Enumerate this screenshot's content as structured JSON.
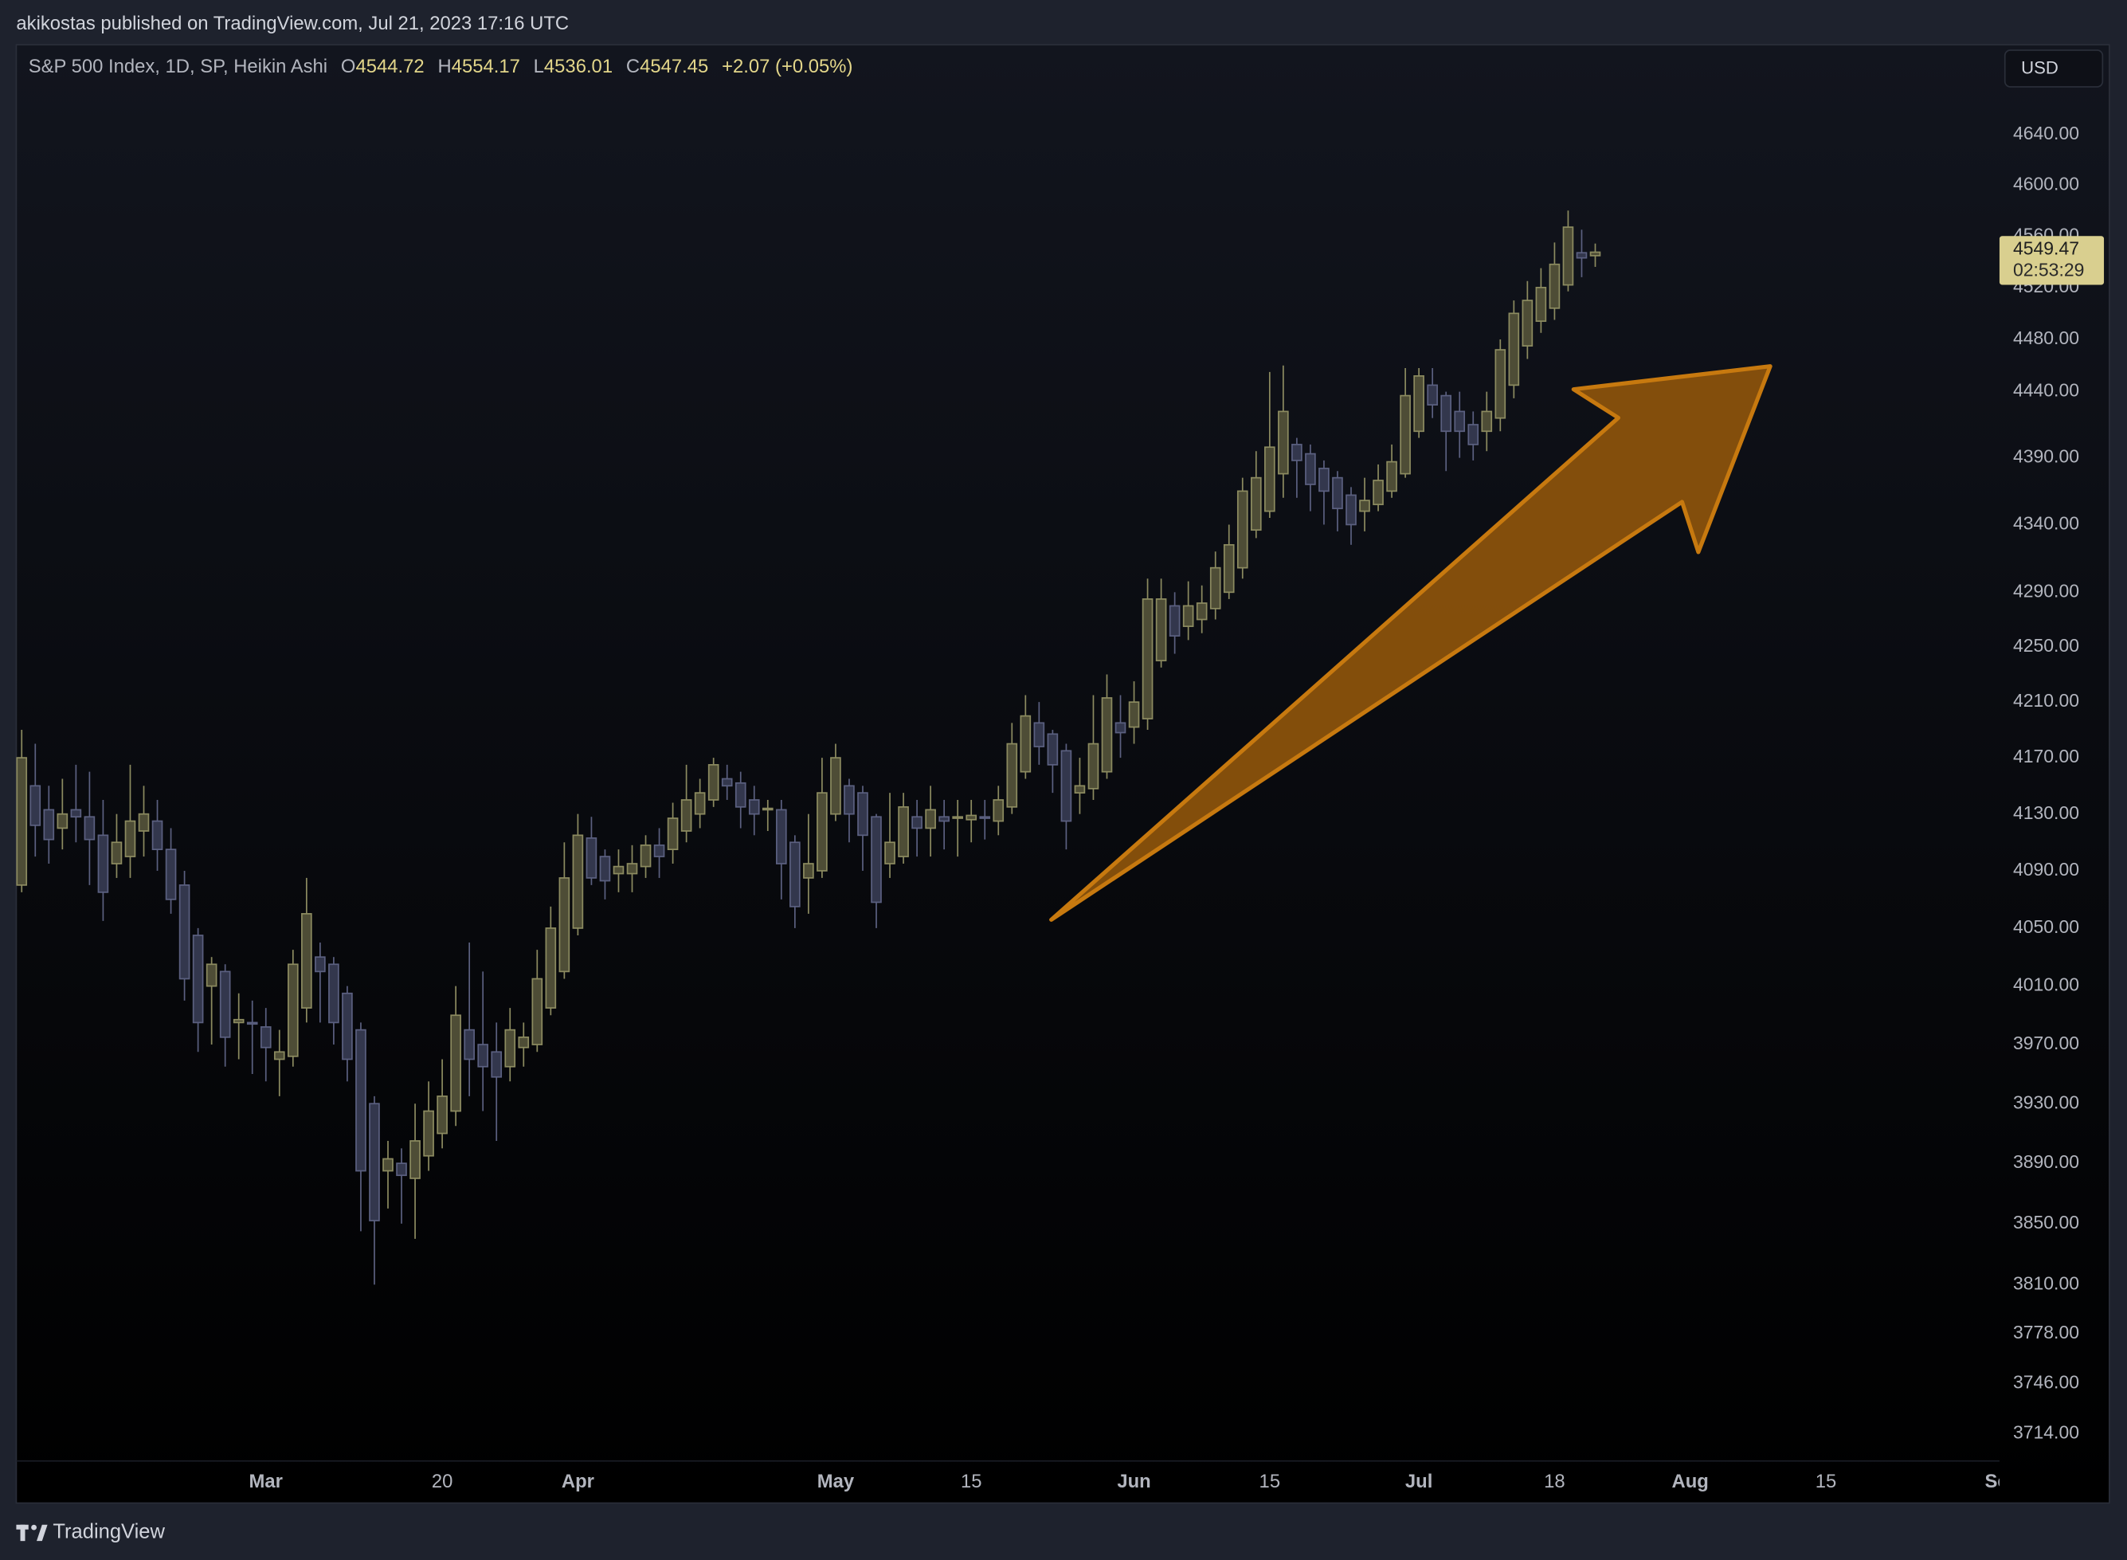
{
  "header": {
    "published": "akikostas published on TradingView.com, Jul 21, 2023 17:16 UTC"
  },
  "footer": {
    "brand": "TradingView"
  },
  "chart_data": {
    "type": "candlestick",
    "title": "S&P 500 Index, 1D, SP, Heikin Ashi",
    "legend_letters": {
      "open": "O",
      "high": "H",
      "low": "L",
      "close": "C"
    },
    "change_label": "+2.07 (+0.05%)",
    "currency": "USD",
    "last_price": 4549.47,
    "countdown": "02:53:29",
    "log_scale": true,
    "grid": false,
    "up_color": "#8c8b60",
    "down_color": "#5b6080",
    "ylim": [
      3670,
      4712
    ],
    "yticks": [
      {
        "value": 4640,
        "label": "4640.00"
      },
      {
        "value": 4600,
        "label": "4600.00"
      },
      {
        "value": 4560,
        "label": "4560.00"
      },
      {
        "value": 4520,
        "label": "4520.00"
      },
      {
        "value": 4480,
        "label": "4480.00"
      },
      {
        "value": 4440,
        "label": "4440.00"
      },
      {
        "value": 4390,
        "label": "4390.00"
      },
      {
        "value": 4340,
        "label": "4340.00"
      },
      {
        "value": 4290,
        "label": "4290.00"
      },
      {
        "value": 4250,
        "label": "4250.00"
      },
      {
        "value": 4210,
        "label": "4210.00"
      },
      {
        "value": 4170,
        "label": "4170.00"
      },
      {
        "value": 4130,
        "label": "4130.00"
      },
      {
        "value": 4090,
        "label": "4090.00"
      },
      {
        "value": 4050,
        "label": "4050.00"
      },
      {
        "value": 4010,
        "label": "4010.00"
      },
      {
        "value": 3970,
        "label": "3970.00"
      },
      {
        "value": 3930,
        "label": "3930.00"
      },
      {
        "value": 3890,
        "label": "3890.00"
      },
      {
        "value": 3850,
        "label": "3850.00"
      },
      {
        "value": 3810,
        "label": "3810.00"
      },
      {
        "value": 3778,
        "label": "3778.00"
      },
      {
        "value": 3746,
        "label": "3746.00"
      },
      {
        "value": 3714,
        "label": "3714.00"
      }
    ],
    "xticks": [
      {
        "value": "2023-03-01",
        "label": "Mar"
      },
      {
        "value": "2023-03-20",
        "label": "20"
      },
      {
        "value": "2023-04-03",
        "label": "Apr"
      },
      {
        "value": "2023-05-01",
        "label": "May"
      },
      {
        "value": "2023-05-15",
        "label": "15"
      },
      {
        "value": "2023-06-01",
        "label": "Jun"
      },
      {
        "value": "2023-06-15",
        "label": "15"
      },
      {
        "value": "2023-07-03",
        "label": "Jul"
      },
      {
        "value": "2023-07-18",
        "label": "18"
      },
      {
        "value": "2023-08-01",
        "label": "Aug"
      },
      {
        "value": "2023-08-15",
        "label": "15"
      },
      {
        "value": "2023-09-01",
        "label": "Sep"
      }
    ],
    "x": [
      "2023-02-02",
      "2023-02-03",
      "2023-02-06",
      "2023-02-07",
      "2023-02-08",
      "2023-02-09",
      "2023-02-10",
      "2023-02-13",
      "2023-02-14",
      "2023-02-15",
      "2023-02-16",
      "2023-02-17",
      "2023-02-21",
      "2023-02-22",
      "2023-02-23",
      "2023-02-24",
      "2023-02-27",
      "2023-02-28",
      "2023-03-01",
      "2023-03-02",
      "2023-03-03",
      "2023-03-06",
      "2023-03-07",
      "2023-03-08",
      "2023-03-09",
      "2023-03-10",
      "2023-03-13",
      "2023-03-14",
      "2023-03-15",
      "2023-03-16",
      "2023-03-17",
      "2023-03-20",
      "2023-03-21",
      "2023-03-22",
      "2023-03-23",
      "2023-03-24",
      "2023-03-27",
      "2023-03-28",
      "2023-03-29",
      "2023-03-30",
      "2023-03-31",
      "2023-04-03",
      "2023-04-04",
      "2023-04-05",
      "2023-04-06",
      "2023-04-10",
      "2023-04-11",
      "2023-04-12",
      "2023-04-13",
      "2023-04-14",
      "2023-04-17",
      "2023-04-18",
      "2023-04-19",
      "2023-04-20",
      "2023-04-21",
      "2023-04-24",
      "2023-04-25",
      "2023-04-26",
      "2023-04-27",
      "2023-04-28",
      "2023-05-01",
      "2023-05-02",
      "2023-05-03",
      "2023-05-04",
      "2023-05-05",
      "2023-05-08",
      "2023-05-09",
      "2023-05-10",
      "2023-05-11",
      "2023-05-12",
      "2023-05-15",
      "2023-05-16",
      "2023-05-17",
      "2023-05-18",
      "2023-05-19",
      "2023-05-22",
      "2023-05-23",
      "2023-05-24",
      "2023-05-25",
      "2023-05-26",
      "2023-05-30",
      "2023-05-31",
      "2023-06-01",
      "2023-06-02",
      "2023-06-05",
      "2023-06-06",
      "2023-06-07",
      "2023-06-08",
      "2023-06-09",
      "2023-06-12",
      "2023-06-13",
      "2023-06-14",
      "2023-06-15",
      "2023-06-16",
      "2023-06-20",
      "2023-06-21",
      "2023-06-22",
      "2023-06-23",
      "2023-06-26",
      "2023-06-27",
      "2023-06-28",
      "2023-06-29",
      "2023-06-30",
      "2023-07-03",
      "2023-07-05",
      "2023-07-06",
      "2023-07-07",
      "2023-07-10",
      "2023-07-11",
      "2023-07-12",
      "2023-07-13",
      "2023-07-14",
      "2023-07-17",
      "2023-07-18",
      "2023-07-19",
      "2023-07-20",
      "2023-07-21"
    ],
    "open": [
      4080,
      4150,
      4133,
      4120,
      4133,
      4128,
      4115,
      4095,
      4100,
      4118,
      4125,
      4105,
      4080,
      4045,
      4010,
      4020,
      3985,
      3985,
      3982,
      3960,
      3962,
      3995,
      4030,
      4025,
      4005,
      3980,
      3930,
      3885,
      3890,
      3880,
      3895,
      3910,
      3925,
      3980,
      3970,
      3965,
      3955,
      3968,
      3970,
      3995,
      4020,
      4050,
      4113,
      4100,
      4088,
      4088,
      4093,
      4108,
      4105,
      4118,
      4130,
      4140,
      4155,
      4152,
      4140,
      4133,
      4133,
      4110,
      4085,
      4090,
      4130,
      4150,
      4145,
      4128,
      4095,
      4100,
      4128,
      4120,
      4128,
      4127,
      4126,
      4128,
      4125,
      4135,
      4160,
      4195,
      4187,
      4175,
      4145,
      4148,
      4160,
      4195,
      4192,
      4198,
      4240,
      4280,
      4265,
      4270,
      4278,
      4290,
      4308,
      4336,
      4350,
      4378,
      4400,
      4393,
      4382,
      4375,
      4362,
      4350,
      4355,
      4365,
      4378,
      4410,
      4445,
      4437,
      4425,
      4415,
      4410,
      4420,
      4445,
      4475,
      4494,
      4504,
      4522,
      4547,
      4544.72
    ],
    "high": [
      4190,
      4180,
      4150,
      4155,
      4165,
      4160,
      4140,
      4130,
      4165,
      4150,
      4140,
      4120,
      4090,
      4050,
      4030,
      4025,
      4005,
      4000,
      3995,
      3980,
      4035,
      4085,
      4040,
      4030,
      4010,
      3985,
      3935,
      3905,
      3900,
      3930,
      3945,
      3960,
      4010,
      4040,
      4020,
      3985,
      3995,
      3985,
      4035,
      4065,
      4110,
      4130,
      4128,
      4105,
      4105,
      4108,
      4115,
      4120,
      4138,
      4165,
      4155,
      4170,
      4165,
      4160,
      4150,
      4140,
      4140,
      4115,
      4130,
      4170,
      4180,
      4155,
      4150,
      4130,
      4145,
      4145,
      4140,
      4150,
      4140,
      4140,
      4140,
      4140,
      4150,
      4195,
      4215,
      4210,
      4190,
      4180,
      4170,
      4215,
      4230,
      4215,
      4225,
      4300,
      4300,
      4290,
      4298,
      4295,
      4320,
      4340,
      4375,
      4395,
      4455,
      4460,
      4405,
      4400,
      4388,
      4380,
      4368,
      4375,
      4385,
      4400,
      4458,
      4458,
      4458,
      4440,
      4440,
      4425,
      4440,
      4480,
      4510,
      4525,
      4535,
      4555,
      4580,
      4565,
      4554.17
    ],
    "low": [
      4075,
      4100,
      4095,
      4105,
      4110,
      4080,
      4055,
      4085,
      4085,
      4100,
      4090,
      4060,
      4000,
      3965,
      3970,
      3955,
      3960,
      3950,
      3945,
      3935,
      3955,
      3985,
      3985,
      3970,
      3945,
      3845,
      3810,
      3860,
      3850,
      3840,
      3885,
      3900,
      3915,
      3935,
      3925,
      3905,
      3945,
      3955,
      3965,
      3990,
      4015,
      4045,
      4080,
      4070,
      4075,
      4075,
      4085,
      4085,
      4095,
      4110,
      4120,
      4135,
      4140,
      4120,
      4115,
      4118,
      4070,
      4050,
      4060,
      4085,
      4125,
      4110,
      4090,
      4050,
      4085,
      4095,
      4100,
      4100,
      4105,
      4100,
      4110,
      4112,
      4115,
      4130,
      4155,
      4165,
      4145,
      4105,
      4130,
      4140,
      4155,
      4170,
      4180,
      4190,
      4235,
      4245,
      4255,
      4260,
      4270,
      4285,
      4300,
      4330,
      4345,
      4360,
      4360,
      4350,
      4340,
      4335,
      4325,
      4335,
      4350,
      4360,
      4375,
      4405,
      4420,
      4380,
      4390,
      4388,
      4395,
      4410,
      4435,
      4465,
      4485,
      4495,
      4517,
      4528,
      4536.01
    ],
    "close": [
      4170,
      4122,
      4112,
      4130,
      4128,
      4112,
      4075,
      4110,
      4125,
      4130,
      4105,
      4070,
      4015,
      3985,
      4025,
      3975,
      3987,
      3984,
      3968,
      3965,
      4025,
      4060,
      4020,
      3985,
      3960,
      3885,
      3852,
      3893,
      3882,
      3905,
      3925,
      3935,
      3990,
      3960,
      3955,
      3948,
      3980,
      3975,
      4015,
      4050,
      4085,
      4115,
      4085,
      4083,
      4093,
      4095,
      4108,
      4100,
      4127,
      4140,
      4145,
      4165,
      4150,
      4135,
      4130,
      4134,
      4095,
      4065,
      4095,
      4145,
      4170,
      4130,
      4115,
      4068,
      4110,
      4135,
      4120,
      4133,
      4125,
      4128,
      4129,
      4127,
      4140,
      4180,
      4200,
      4178,
      4165,
      4125,
      4150,
      4180,
      4213,
      4188,
      4210,
      4285,
      4285,
      4258,
      4280,
      4282,
      4308,
      4325,
      4365,
      4375,
      4398,
      4425,
      4388,
      4370,
      4365,
      4352,
      4340,
      4358,
      4373,
      4387,
      4437,
      4452,
      4430,
      4410,
      4410,
      4400,
      4425,
      4472,
      4500,
      4510,
      4520,
      4538,
      4567,
      4543,
      4547.45
    ]
  }
}
